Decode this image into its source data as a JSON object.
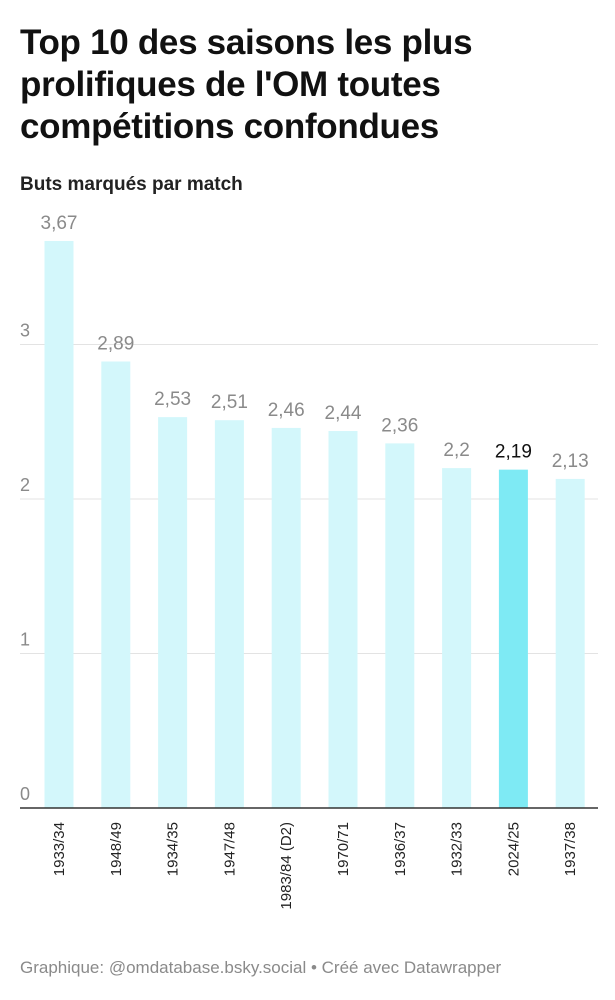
{
  "title": "Top 10 des saisons les plus prolifiques de l'OM toutes compétitions confondues",
  "subtitle": "Buts marqués par match",
  "footer": "Graphique: @omdatabase.bsky.social • Créé avec Datawrapper",
  "colors": {
    "bar": "#d3f7fb",
    "highlight": "#7eeaf4",
    "value_label": "#8a8a8a",
    "highlight_label": "#111111",
    "grid": "#e3e3e3",
    "axis": "#333333",
    "tick_label": "#8a8a8a",
    "category_label": "#222222"
  },
  "chart_data": {
    "type": "bar",
    "categories": [
      "1933/34",
      "1948/49",
      "1934/35",
      "1947/48",
      "1983/84 (D2)",
      "1970/71",
      "1936/37",
      "1932/33",
      "2024/25",
      "1937/38"
    ],
    "values": [
      3.67,
      2.89,
      2.53,
      2.51,
      2.46,
      2.44,
      2.36,
      2.2,
      2.19,
      2.13
    ],
    "value_labels": [
      "3,67",
      "2,89",
      "2,53",
      "2,51",
      "2,46",
      "2,44",
      "2,36",
      "2,2",
      "2,19",
      "2,13"
    ],
    "highlight": "2024/25",
    "ylabel": "Buts marqués par match",
    "yticks": [
      0,
      1,
      2,
      3
    ],
    "ylim": [
      0,
      4
    ],
    "grid": true
  }
}
